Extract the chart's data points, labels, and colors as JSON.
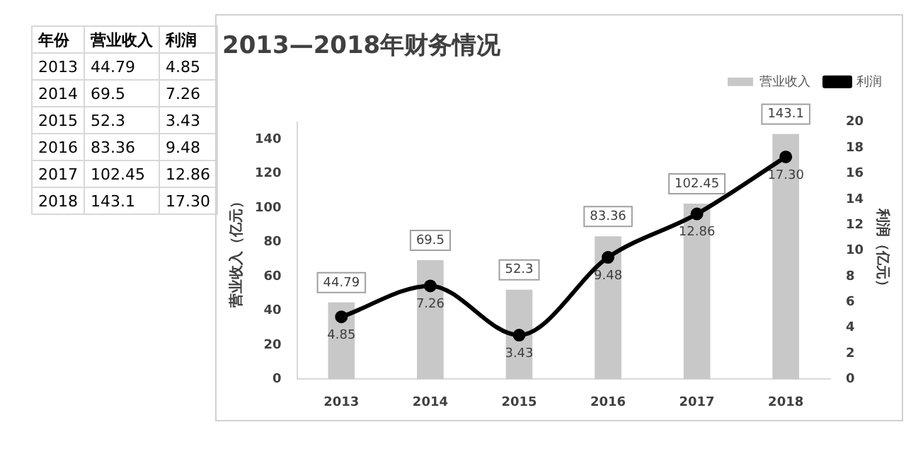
{
  "chart_data": {
    "type": "bar",
    "title": "2013—2018年财务情况",
    "ylabel": "营业收入（亿元）",
    "y2label": "利润（亿元）",
    "categories": [
      "2013",
      "2014",
      "2015",
      "2016",
      "2017",
      "2018"
    ],
    "series": [
      {
        "name": "营业收入",
        "color": "#c8c8c8",
        "values": [
          44.79,
          69.5,
          52.3,
          83.36,
          102.45,
          143.1
        ],
        "value_labels": [
          "44.79",
          "69.5",
          "52.3",
          "83.36",
          "102.45",
          "143.1"
        ]
      },
      {
        "name": "利润",
        "type": "line",
        "axis": "y2",
        "color": "#000000",
        "values": [
          4.85,
          7.26,
          3.43,
          9.48,
          12.86,
          17.3
        ],
        "value_labels": [
          "4.85",
          "7.26",
          "3.43",
          "9.48",
          "12.86",
          "17.30"
        ]
      }
    ],
    "ylim": [
      0,
      150
    ],
    "yticks": [
      0,
      20,
      40,
      60,
      80,
      100,
      120,
      140
    ],
    "y2lim": [
      0,
      20
    ],
    "y2ticks": [
      0,
      2,
      4,
      6,
      8,
      10,
      12,
      14,
      16,
      18,
      20
    ],
    "annotations": [
      "年份"
    ],
    "legend": "top right",
    "marker": "circle",
    "line_style": "solid",
    "grid": false
  }
}
